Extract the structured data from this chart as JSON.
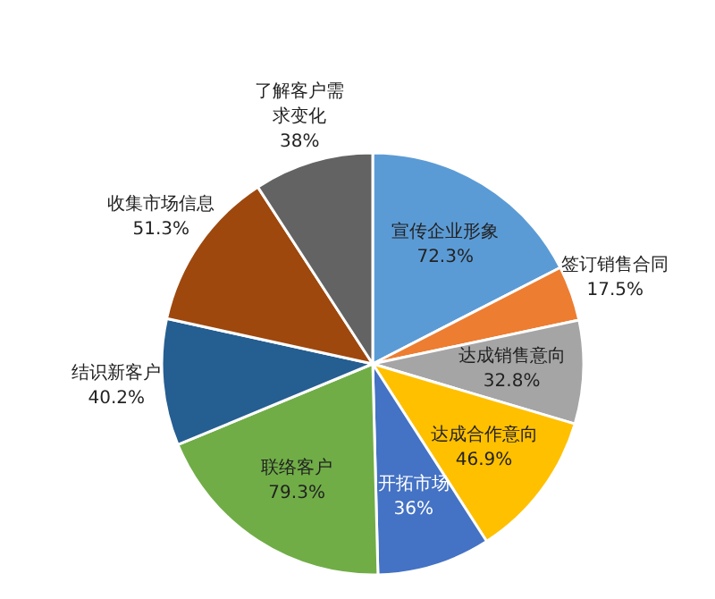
{
  "chart_data": {
    "type": "pie",
    "categories": [
      "宣传企业形象",
      "签订销售合同",
      "达成销售意向",
      "达成合作意向",
      "开拓市场",
      "联络客户",
      "结识新客户",
      "收集市场信息",
      "了解客户需求变化"
    ],
    "values": [
      72.3,
      17.5,
      32.8,
      46.9,
      36,
      79.3,
      40.2,
      51.3,
      38
    ],
    "value_labels": [
      "72.3%",
      "17.5%",
      "32.8%",
      "46.9%",
      "36%",
      "79.3%",
      "40.2%",
      "51.3%",
      "38%"
    ],
    "colors": [
      "#5b9bd5",
      "#ed7d31",
      "#a5a5a5",
      "#ffc000",
      "#4472c4",
      "#70ad47",
      "#255e91",
      "#9e480e",
      "#636363"
    ]
  }
}
